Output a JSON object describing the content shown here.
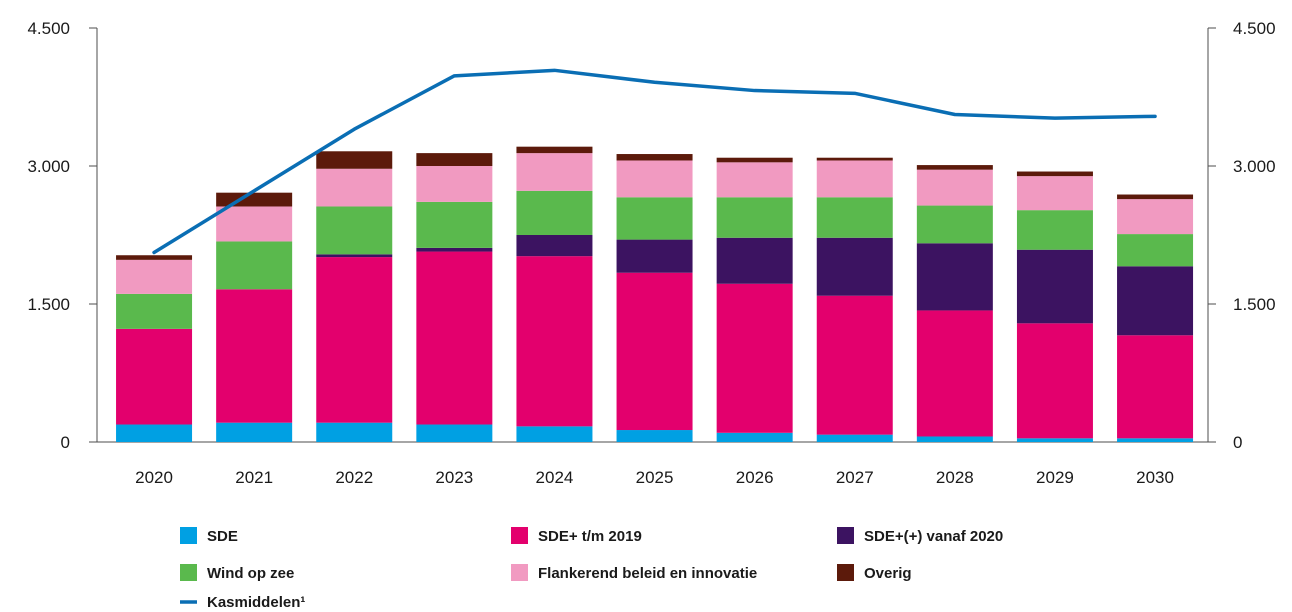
{
  "chart_data": {
    "type": "bar",
    "stacked": true,
    "dual_axis": true,
    "categories": [
      "2020",
      "2021",
      "2022",
      "2023",
      "2024",
      "2025",
      "2026",
      "2027",
      "2028",
      "2029",
      "2030"
    ],
    "ylim": [
      0,
      4500
    ],
    "yticks": [
      0,
      1500,
      3000,
      4500
    ],
    "ytick_labels": [
      "0",
      "1.500",
      "3.000",
      "4.500"
    ],
    "y2ticks": [
      0,
      1500,
      3000,
      4500
    ],
    "y2tick_labels": [
      "0",
      "1.500",
      "3.000",
      "4.500"
    ],
    "grid": false,
    "legend_position": "bottom",
    "series": [
      {
        "name": "SDE",
        "color": "#00a0e3",
        "values": [
          190,
          210,
          210,
          190,
          170,
          130,
          100,
          80,
          60,
          40,
          40
        ]
      },
      {
        "name": "SDE+ t/m 2019",
        "color": "#e3006d",
        "values": [
          1040,
          1450,
          1800,
          1880,
          1850,
          1710,
          1620,
          1510,
          1370,
          1250,
          1120
        ]
      },
      {
        "name": "SDE+(+) vanaf 2020",
        "color": "#3c1361",
        "values": [
          0,
          0,
          30,
          40,
          230,
          360,
          500,
          630,
          730,
          800,
          750
        ]
      },
      {
        "name": "Wind op zee",
        "color": "#5ab94d",
        "values": [
          380,
          520,
          520,
          500,
          480,
          460,
          440,
          440,
          410,
          430,
          350
        ]
      },
      {
        "name": "Flankerend beleid en innovatie",
        "color": "#f19ac1",
        "values": [
          370,
          380,
          410,
          390,
          410,
          400,
          380,
          400,
          390,
          370,
          380
        ]
      },
      {
        "name": "Overig",
        "color": "#5c1a0b",
        "values": [
          50,
          150,
          190,
          140,
          70,
          70,
          50,
          30,
          50,
          50,
          50
        ]
      }
    ],
    "line_series": {
      "name": "Kasmiddelen¹",
      "color": "#0a6eb4",
      "values": [
        2060,
        2730,
        3400,
        3980,
        4040,
        3910,
        3820,
        3790,
        3560,
        3520,
        3540
      ]
    }
  }
}
